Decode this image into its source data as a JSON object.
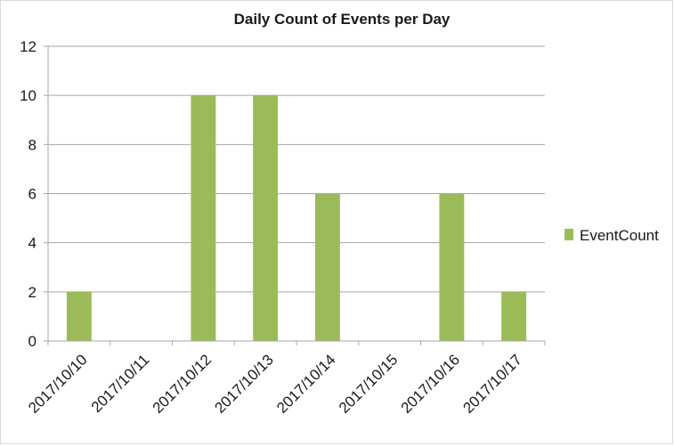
{
  "chart_data": {
    "type": "bar",
    "title": "Daily Count of Events per Day",
    "xlabel": "",
    "ylabel": "",
    "categories": [
      "2017/10/10",
      "2017/10/11",
      "2017/10/12",
      "2017/10/13",
      "2017/10/14",
      "2017/10/15",
      "2017/10/16",
      "2017/10/17"
    ],
    "series": [
      {
        "name": "EventCount",
        "values": [
          2,
          0,
          10,
          10,
          6,
          0,
          6,
          2
        ],
        "color": "#9bbb59"
      }
    ],
    "ylim": [
      0,
      12
    ],
    "yticks": [
      0,
      2,
      4,
      6,
      8,
      10,
      12
    ],
    "grid": true,
    "legend_position": "right",
    "gridline_color": "#a6a6a6",
    "axis_color": "#a6a6a6"
  }
}
